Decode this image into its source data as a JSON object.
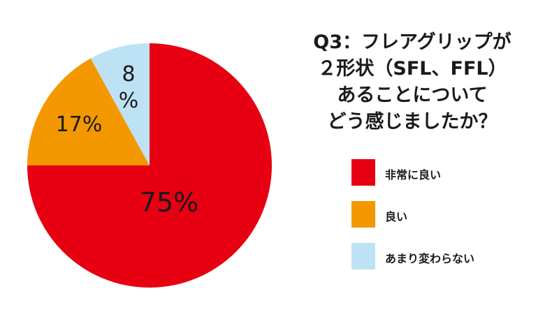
{
  "question": {
    "lines": [
      "Q3：フレアグリップが",
      "２形状（SFL、FFL）",
      "あることについて",
      "どう感じましたか？"
    ]
  },
  "chart_data": {
    "type": "pie",
    "title": "Q3：フレアグリップが２形状（SFL、FFL）あることについてどう感じましたか？",
    "unit": "%",
    "slices": [
      {
        "label": "非常に良い",
        "value": 75,
        "display": "75%",
        "color": "#e60012"
      },
      {
        "label": "良い",
        "value": 17,
        "display": "17%",
        "color": "#f39800"
      },
      {
        "label": "あまり変わらない",
        "value": 8,
        "display": "8\n%",
        "color": "#bde2f5"
      }
    ],
    "legend_position": "right"
  },
  "legend": {
    "items": [
      {
        "label": "非常に良い",
        "color": "#e60012"
      },
      {
        "label": "良い",
        "color": "#f39800"
      },
      {
        "label": "あまり変わらない",
        "color": "#bde2f5"
      }
    ]
  }
}
